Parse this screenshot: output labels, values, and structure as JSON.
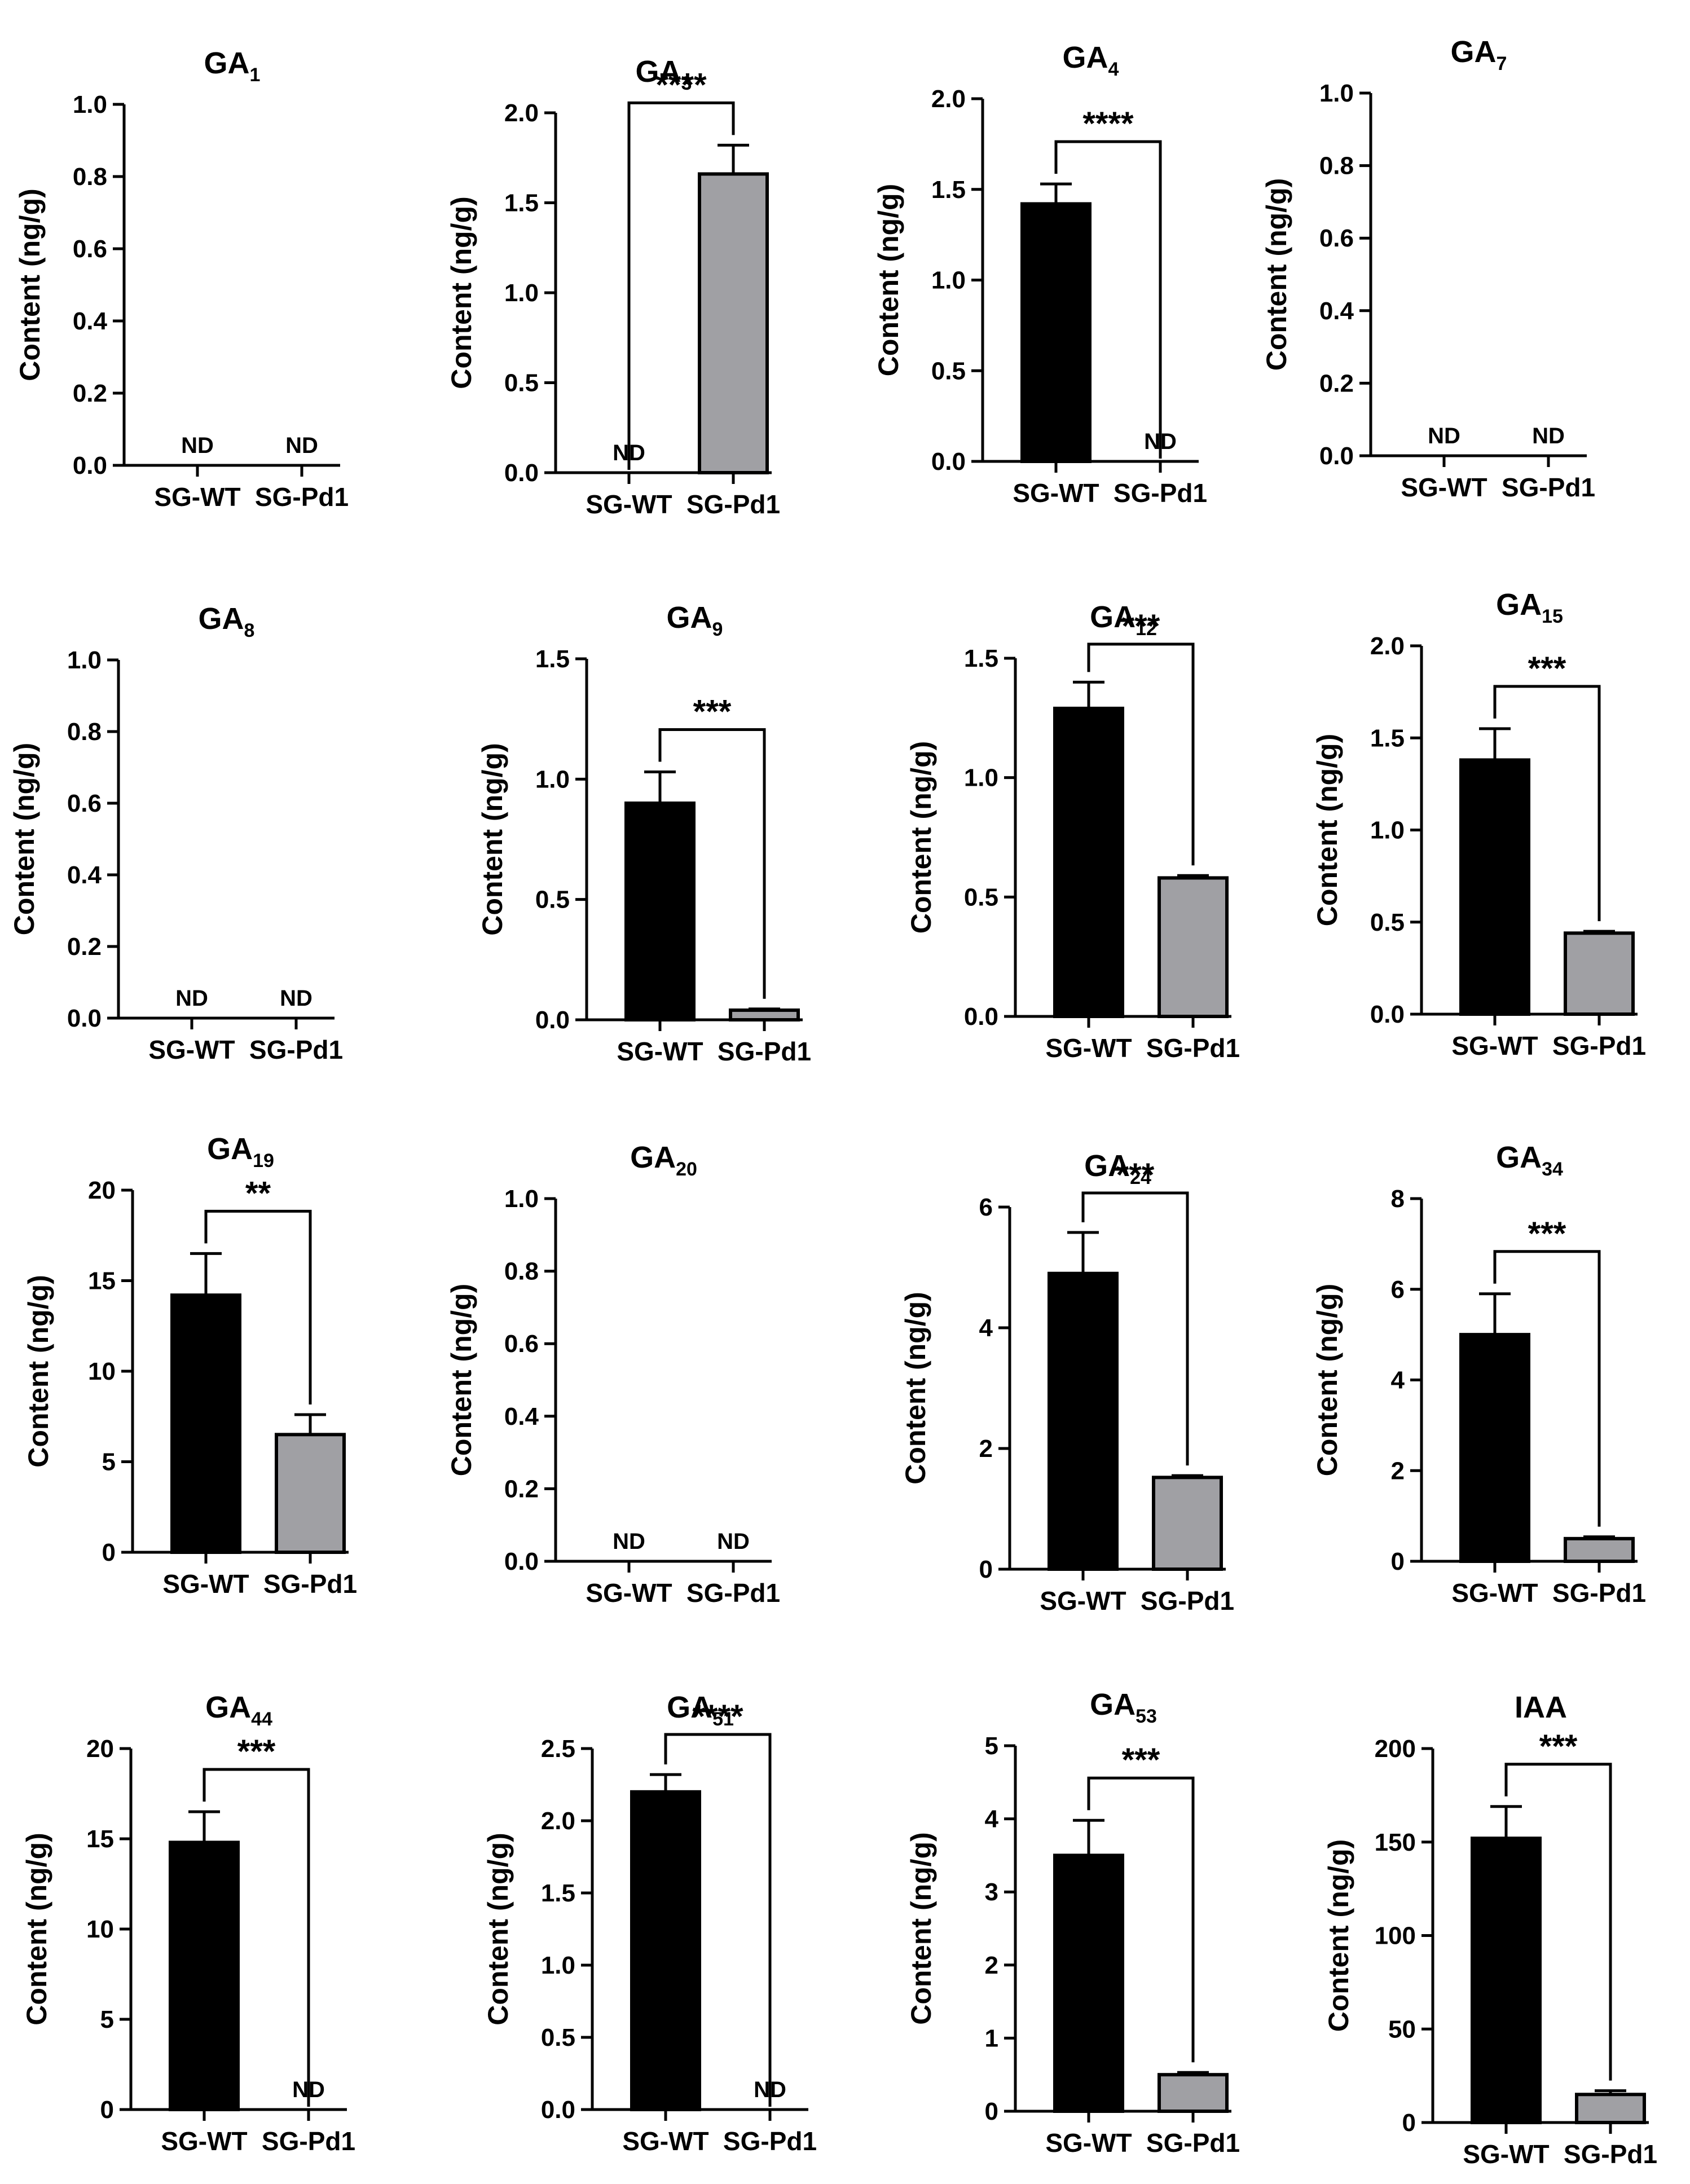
{
  "colors": {
    "wt": "#000000",
    "pd1": "#a0a0a4",
    "axis": "#000000"
  },
  "chart_data": [
    {
      "type": "bar",
      "title_main": "GA",
      "title_sub": "1",
      "ylabel": "Content (ng/g)",
      "ylim": [
        0,
        1.0
      ],
      "yticks": [
        "0.0",
        "0.2",
        "0.4",
        "0.6",
        "0.8",
        "1.0"
      ],
      "categories": [
        "SG-WT",
        "SG-Pd1"
      ],
      "values": [
        0,
        0
      ],
      "errors": [
        0,
        0
      ],
      "nd": [
        "ND",
        "ND"
      ],
      "significance": ""
    },
    {
      "type": "bar",
      "title_main": "GA",
      "title_sub": "3",
      "ylabel": "Content (ng/g)",
      "ylim": [
        0,
        2.0
      ],
      "yticks": [
        "0.0",
        "0.5",
        "1.0",
        "1.5",
        "2.0"
      ],
      "categories": [
        "SG-WT",
        "SG-Pd1"
      ],
      "values": [
        0,
        1.66
      ],
      "errors": [
        0,
        0.16
      ],
      "nd": [
        "ND",
        ""
      ],
      "significance": "****"
    },
    {
      "type": "bar",
      "title_main": "GA",
      "title_sub": "4",
      "ylabel": "Content (ng/g)",
      "ylim": [
        0,
        2.0
      ],
      "yticks": [
        "0.0",
        "0.5",
        "1.0",
        "1.5",
        "2.0"
      ],
      "categories": [
        "SG-WT",
        "SG-Pd1"
      ],
      "values": [
        1.42,
        0
      ],
      "errors": [
        0.11,
        0
      ],
      "nd": [
        "",
        "ND"
      ],
      "significance": "****"
    },
    {
      "type": "bar",
      "title_main": "GA",
      "title_sub": "7",
      "ylabel": "Content (ng/g)",
      "ylim": [
        0,
        1.0
      ],
      "yticks": [
        "0.0",
        "0.2",
        "0.4",
        "0.6",
        "0.8",
        "1.0"
      ],
      "categories": [
        "SG-WT",
        "SG-Pd1"
      ],
      "values": [
        0,
        0
      ],
      "errors": [
        0,
        0
      ],
      "nd": [
        "ND",
        "ND"
      ],
      "significance": ""
    },
    {
      "type": "bar",
      "title_main": "GA",
      "title_sub": "8",
      "ylabel": "Content (ng/g)",
      "ylim": [
        0,
        1.0
      ],
      "yticks": [
        "0.0",
        "0.2",
        "0.4",
        "0.6",
        "0.8",
        "1.0"
      ],
      "categories": [
        "SG-WT",
        "SG-Pd1"
      ],
      "values": [
        0,
        0
      ],
      "errors": [
        0,
        0
      ],
      "nd": [
        "ND",
        "ND"
      ],
      "significance": ""
    },
    {
      "type": "bar",
      "title_main": "GA",
      "title_sub": "9",
      "ylabel": "Content (ng/g)",
      "ylim": [
        0,
        1.5
      ],
      "yticks": [
        "0.0",
        "0.5",
        "1.0",
        "1.5"
      ],
      "categories": [
        "SG-WT",
        "SG-Pd1"
      ],
      "values": [
        0.9,
        0.04
      ],
      "errors": [
        0.13,
        0.005
      ],
      "nd": [
        "",
        ""
      ],
      "significance": "***"
    },
    {
      "type": "bar",
      "title_main": "GA",
      "title_sub": "12",
      "ylabel": "Content (ng/g)",
      "ylim": [
        0,
        1.5
      ],
      "yticks": [
        "0.0",
        "0.5",
        "1.0",
        "1.5"
      ],
      "categories": [
        "SG-WT",
        "SG-Pd1"
      ],
      "values": [
        1.29,
        0.58
      ],
      "errors": [
        0.11,
        0.01
      ],
      "nd": [
        "",
        ""
      ],
      "significance": "***"
    },
    {
      "type": "bar",
      "title_main": "GA",
      "title_sub": "15",
      "ylabel": "Content (ng/g)",
      "ylim": [
        0,
        2.0
      ],
      "yticks": [
        "0.0",
        "0.5",
        "1.0",
        "1.5",
        "2.0"
      ],
      "categories": [
        "SG-WT",
        "SG-Pd1"
      ],
      "values": [
        1.38,
        0.44
      ],
      "errors": [
        0.17,
        0.01
      ],
      "nd": [
        "",
        ""
      ],
      "significance": "***"
    },
    {
      "type": "bar",
      "title_main": "GA",
      "title_sub": "19",
      "ylabel": "Content (ng/g)",
      "ylim": [
        0,
        20
      ],
      "yticks": [
        "0",
        "5",
        "10",
        "15",
        "20"
      ],
      "categories": [
        "SG-WT",
        "SG-Pd1"
      ],
      "values": [
        14.2,
        6.5
      ],
      "errors": [
        2.3,
        1.1
      ],
      "nd": [
        "",
        ""
      ],
      "significance": "**"
    },
    {
      "type": "bar",
      "title_main": "GA",
      "title_sub": "20",
      "ylabel": "Content (ng/g)",
      "ylim": [
        0,
        1.0
      ],
      "yticks": [
        "0.0",
        "0.2",
        "0.4",
        "0.6",
        "0.8",
        "1.0"
      ],
      "categories": [
        "SG-WT",
        "SG-Pd1"
      ],
      "values": [
        0,
        0
      ],
      "errors": [
        0,
        0
      ],
      "nd": [
        "ND",
        "ND"
      ],
      "significance": ""
    },
    {
      "type": "bar",
      "title_main": "GA",
      "title_sub": "24",
      "ylabel": "Content (ng/g)",
      "ylim": [
        0,
        6
      ],
      "yticks": [
        "0",
        "2",
        "4",
        "6"
      ],
      "categories": [
        "SG-WT",
        "SG-Pd1"
      ],
      "values": [
        4.9,
        1.52
      ],
      "errors": [
        0.68,
        0.03
      ],
      "nd": [
        "",
        ""
      ],
      "significance": "***"
    },
    {
      "type": "bar",
      "title_main": "GA",
      "title_sub": "34",
      "ylabel": "Content (ng/g)",
      "ylim": [
        0,
        8
      ],
      "yticks": [
        "0",
        "2",
        "4",
        "6",
        "8"
      ],
      "categories": [
        "SG-WT",
        "SG-Pd1"
      ],
      "values": [
        5.0,
        0.5
      ],
      "errors": [
        0.9,
        0.04
      ],
      "nd": [
        "",
        ""
      ],
      "significance": "***"
    },
    {
      "type": "bar",
      "title_main": "GA",
      "title_sub": "44",
      "ylabel": "Content (ng/g)",
      "ylim": [
        0,
        20
      ],
      "yticks": [
        "0",
        "5",
        "10",
        "15",
        "20"
      ],
      "categories": [
        "SG-WT",
        "SG-Pd1"
      ],
      "values": [
        14.8,
        0
      ],
      "errors": [
        1.7,
        0
      ],
      "nd": [
        "",
        "ND"
      ],
      "significance": "***"
    },
    {
      "type": "bar",
      "title_main": "GA",
      "title_sub": "51",
      "ylabel": "Content (ng/g)",
      "ylim": [
        0,
        2.5
      ],
      "yticks": [
        "0.0",
        "0.5",
        "1.0",
        "1.5",
        "2.0",
        "2.5"
      ],
      "categories": [
        "SG-WT",
        "SG-Pd1"
      ],
      "values": [
        2.2,
        0
      ],
      "errors": [
        0.12,
        0
      ],
      "nd": [
        "",
        "ND"
      ],
      "significance": "****"
    },
    {
      "type": "bar",
      "title_main": "GA",
      "title_sub": "53",
      "ylabel": "Content (ng/g)",
      "ylim": [
        0,
        5
      ],
      "yticks": [
        "0",
        "1",
        "2",
        "3",
        "4",
        "5"
      ],
      "categories": [
        "SG-WT",
        "SG-Pd1"
      ],
      "values": [
        3.5,
        0.5
      ],
      "errors": [
        0.48,
        0.03
      ],
      "nd": [
        "",
        ""
      ],
      "significance": "***"
    },
    {
      "type": "bar",
      "title_main": "IAA",
      "title_sub": "",
      "ylabel": "Content (ng/g)",
      "ylim": [
        0,
        200
      ],
      "yticks": [
        "0",
        "50",
        "100",
        "150",
        "200"
      ],
      "categories": [
        "SG-WT",
        "SG-Pd1"
      ],
      "values": [
        152,
        15
      ],
      "errors": [
        17,
        2
      ],
      "nd": [
        "",
        ""
      ],
      "significance": "***"
    }
  ]
}
